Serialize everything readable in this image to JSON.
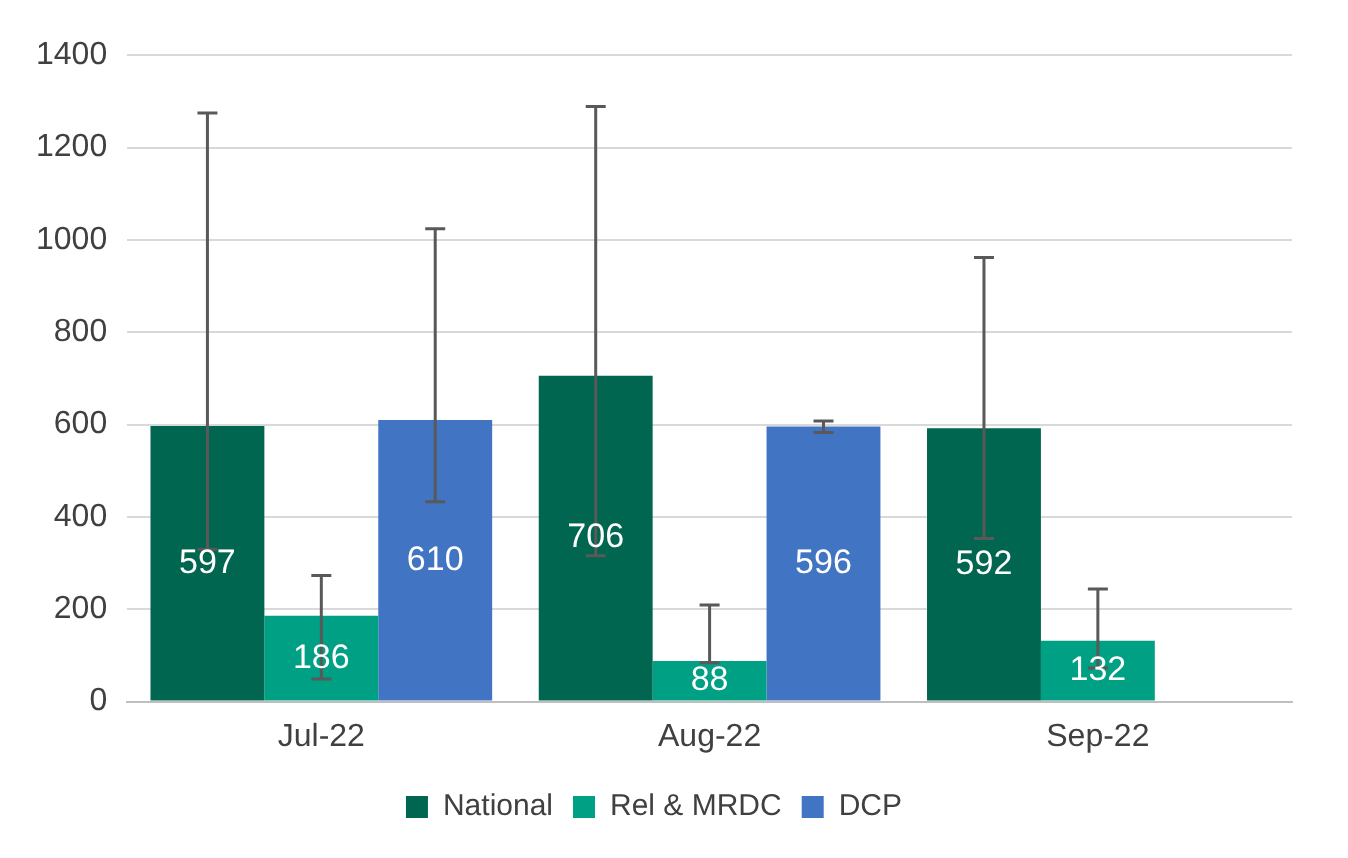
{
  "chart_data": {
    "type": "bar",
    "categories": [
      "Jul-22",
      "Aug-22",
      "Sep-22"
    ],
    "series": [
      {
        "name": "National",
        "color": "#00664f",
        "values": [
          597,
          706,
          592
        ],
        "errors": [
          [
            330,
            1275
          ],
          [
            316,
            1289
          ],
          [
            353,
            962
          ]
        ]
      },
      {
        "name": "Rel & MRDC",
        "color": "#00a084",
        "values": [
          186,
          88,
          132
        ],
        "errors": [
          [
            49,
            273
          ],
          [
            84,
            209
          ],
          [
            73,
            244
          ]
        ]
      },
      {
        "name": "DCP",
        "color": "#4175c4",
        "values": [
          610,
          596,
          null
        ],
        "errors": [
          [
            433,
            1024
          ],
          [
            583,
            608
          ],
          null
        ]
      }
    ],
    "ylim": [
      0,
      1400
    ],
    "yticks": [
      0,
      200,
      400,
      600,
      800,
      1000,
      1200,
      1400
    ],
    "grid": "y",
    "legend": "bottom",
    "data_labels": true
  }
}
